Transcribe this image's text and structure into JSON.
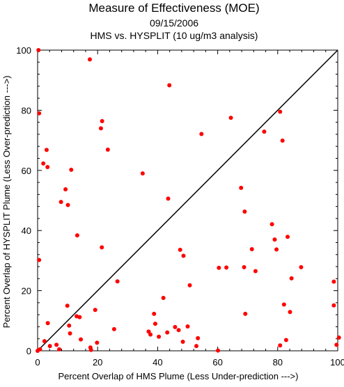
{
  "chart_data": {
    "type": "scatter",
    "title": "Measure of Effectiveness (MOE)",
    "date": "09/15/2006",
    "subtitle": "HMS vs. HYSPLIT  (10 ug/m3 analysis)",
    "xlabel": "Percent Overlap of HMS Plume (Less Under-prediction --->)",
    "ylabel": "Percent Overlap of HYSPLIT Plume (Less Over-prediction --->)",
    "xlim": [
      0,
      100
    ],
    "ylim": [
      0,
      100
    ],
    "xticks": [
      0,
      20,
      40,
      60,
      80,
      100
    ],
    "yticks": [
      0,
      20,
      40,
      60,
      80,
      100
    ],
    "grid": false,
    "reference_line": {
      "from": [
        0,
        0
      ],
      "to": [
        100,
        100
      ]
    },
    "point_color": "#ff0000",
    "line_color": "#000000",
    "points": [
      [
        0.3,
        100
      ],
      [
        0.5,
        79
      ],
      [
        0.5,
        30.2
      ],
      [
        0,
        0
      ],
      [
        0.8,
        0.5
      ],
      [
        1.9,
        62.3
      ],
      [
        2.3,
        3.2
      ],
      [
        3.0,
        66.8
      ],
      [
        3.3,
        61.1
      ],
      [
        3.4,
        9.2
      ],
      [
        4.1,
        1.6
      ],
      [
        6.3,
        2.0
      ],
      [
        7.2,
        0.5
      ],
      [
        7.8,
        49.5
      ],
      [
        9.3,
        53.7
      ],
      [
        9.9,
        15.0
      ],
      [
        10.1,
        48.5
      ],
      [
        10.5,
        8.4
      ],
      [
        10.8,
        5.8
      ],
      [
        11.2,
        60.2
      ],
      [
        13.0,
        11.5
      ],
      [
        13.2,
        38.4
      ],
      [
        14.0,
        11.2
      ],
      [
        14.4,
        3.8
      ],
      [
        17.4,
        96.9
      ],
      [
        17.6,
        1.1
      ],
      [
        17.8,
        0.3
      ],
      [
        19.2,
        13.6
      ],
      [
        19.8,
        2.7
      ],
      [
        21.1,
        74.0
      ],
      [
        21.5,
        76.4
      ],
      [
        21.4,
        34.4
      ],
      [
        23.4,
        66.9
      ],
      [
        25.5,
        7.2
      ],
      [
        26.6,
        23.1
      ],
      [
        35.0,
        59.0
      ],
      [
        37.0,
        6.4
      ],
      [
        37.6,
        5.4
      ],
      [
        38.8,
        12.3
      ],
      [
        39.2,
        9.0
      ],
      [
        40.4,
        4.7
      ],
      [
        41.9,
        17.6
      ],
      [
        43.2,
        6.1
      ],
      [
        43.5,
        50.6
      ],
      [
        43.9,
        88.3
      ],
      [
        45.8,
        7.9
      ],
      [
        47.0,
        6.9
      ],
      [
        47.5,
        33.6
      ],
      [
        48.4,
        3.0
      ],
      [
        48.6,
        31.6
      ],
      [
        50.0,
        8.1
      ],
      [
        50.7,
        21.8
      ],
      [
        52.9,
        1.6
      ],
      [
        53.4,
        4.2
      ],
      [
        54.6,
        72.1
      ],
      [
        60.1,
        0.1
      ],
      [
        60.4,
        27.6
      ],
      [
        62.9,
        27.7
      ],
      [
        64.4,
        77.5
      ],
      [
        67.8,
        54.2
      ],
      [
        68.8,
        27.8
      ],
      [
        69.0,
        46.3
      ],
      [
        69.2,
        12.3
      ],
      [
        71.4,
        33.8
      ],
      [
        72.6,
        26.5
      ],
      [
        75.5,
        72.9
      ],
      [
        78.1,
        42.1
      ],
      [
        79.0,
        37.0
      ],
      [
        79.6,
        33.7
      ],
      [
        80.8,
        79.5
      ],
      [
        80.8,
        1.8
      ],
      [
        81.6,
        69.9
      ],
      [
        82.1,
        15.4
      ],
      [
        82.8,
        3.6
      ],
      [
        83.3,
        37.9
      ],
      [
        84.1,
        12.9
      ],
      [
        84.6,
        24.1
      ],
      [
        87.8,
        27.8
      ],
      [
        98.7,
        23.0
      ],
      [
        98.7,
        15.1
      ],
      [
        99.6,
        2.0
      ],
      [
        100.4,
        4.4
      ]
    ]
  }
}
